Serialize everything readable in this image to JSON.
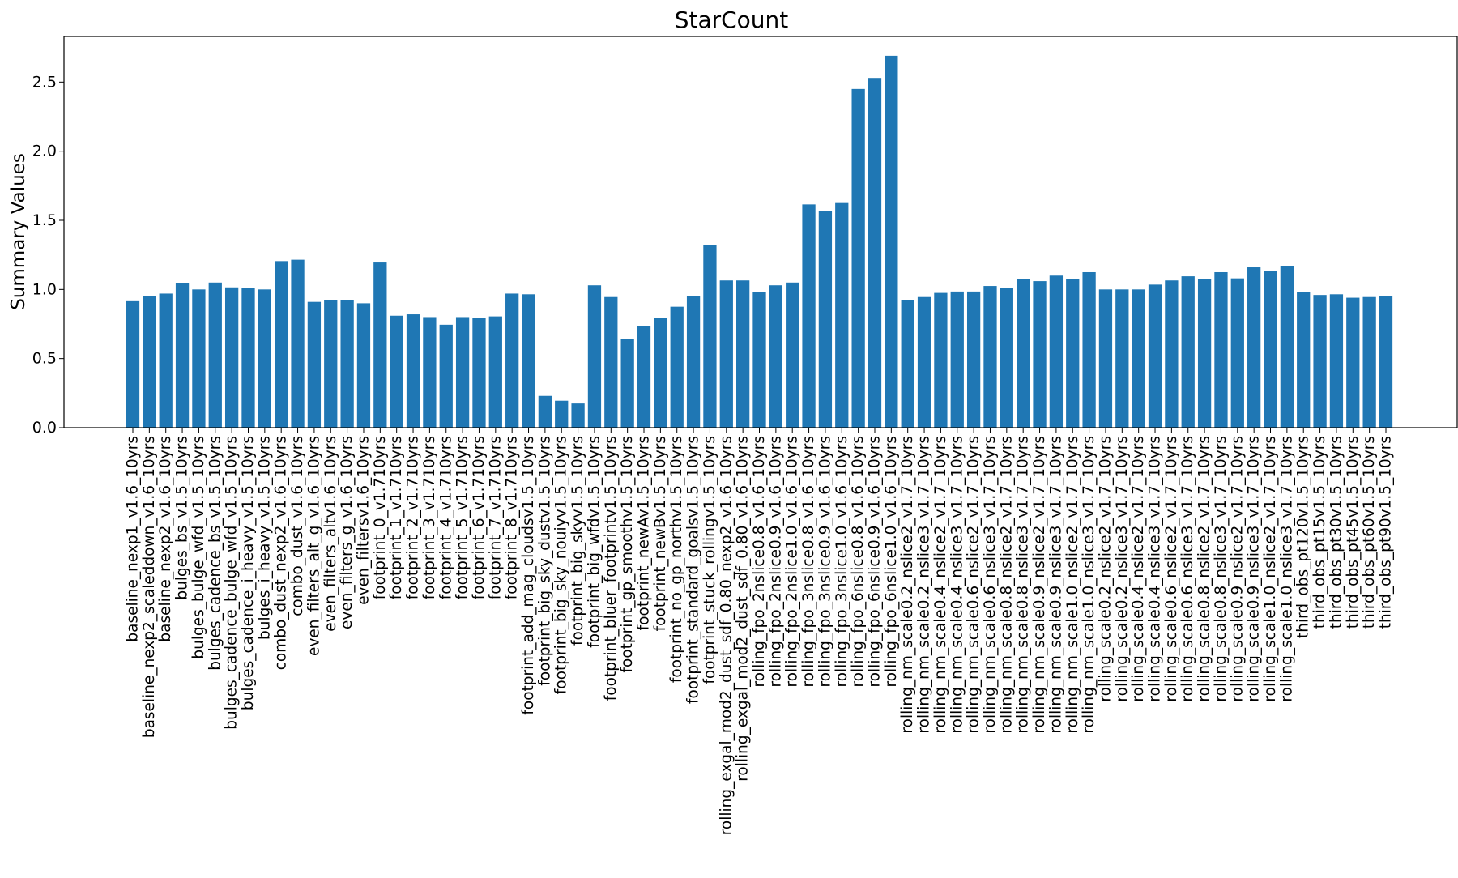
{
  "chart_data": {
    "type": "bar",
    "title": "StarCount",
    "xlabel": "",
    "ylabel": "Summary Values",
    "ylim": [
      0,
      2.83
    ],
    "yticks": [
      0.0,
      0.5,
      1.0,
      1.5,
      2.0,
      2.5
    ],
    "ytick_labels": [
      "0.0",
      "0.5",
      "1.0",
      "1.5",
      "2.0",
      "2.5"
    ],
    "grid": false,
    "bar_color": "#1f77b4",
    "categories": [
      "baseline_nexp1_v1.6_10yrs",
      "baseline_nexp2_scaleddown_v1.6_10yrs",
      "baseline_nexp2_v1.6_10yrs",
      "bulges_bs_v1.5_10yrs",
      "bulges_bulge_wfd_v1.5_10yrs",
      "bulges_cadence_bs_v1.5_10yrs",
      "bulges_cadence_bulge_wfd_v1.5_10yrs",
      "bulges_cadence_i_heavy_v1.5_10yrs",
      "bulges_i_heavy_v1.5_10yrs",
      "combo_dust_nexp2_v1.6_10yrs",
      "combo_dust_v1.6_10yrs",
      "even_filters_alt_g_v1.6_10yrs",
      "even_filters_altv1.6_10yrs",
      "even_filters_g_v1.6_10yrs",
      "even_filtersv1.6_10yrs",
      "footprint_0_v1.710yrs",
      "footprint_1_v1.710yrs",
      "footprint_2_v1.710yrs",
      "footprint_3_v1.710yrs",
      "footprint_4_v1.710yrs",
      "footprint_5_v1.710yrs",
      "footprint_6_v1.710yrs",
      "footprint_7_v1.710yrs",
      "footprint_8_v1.710yrs",
      "footprint_add_mag_cloudsv1.5_10yrs",
      "footprint_big_sky_dustv1.5_10yrs",
      "footprint_big_sky_nouiyv1.5_10yrs",
      "footprint_big_skyv1.5_10yrs",
      "footprint_big_wfdv1.5_10yrs",
      "footprint_bluer_footprintv1.5_10yrs",
      "footprint_gp_smoothv1.5_10yrs",
      "footprint_newAv1.5_10yrs",
      "footprint_newBv1.5_10yrs",
      "footprint_no_gp_northv1.5_10yrs",
      "footprint_standard_goalsv1.5_10yrs",
      "footprint_stuck_rollingv1.5_10yrs",
      "rolling_exgal_mod2_dust_sdf_0.80_nexp2_v1.6_10yrs",
      "rolling_exgal_mod2_dust_sdf_0.80_v1.6_10yrs",
      "rolling_fpo_2nslice0.8_v1.6_10yrs",
      "rolling_fpo_2nslice0.9_v1.6_10yrs",
      "rolling_fpo_2nslice1.0_v1.6_10yrs",
      "rolling_fpo_3nslice0.8_v1.6_10yrs",
      "rolling_fpo_3nslice0.9_v1.6_10yrs",
      "rolling_fpo_3nslice1.0_v1.6_10yrs",
      "rolling_fpo_6nslice0.8_v1.6_10yrs",
      "rolling_fpo_6nslice0.9_v1.6_10yrs",
      "rolling_fpo_6nslice1.0_v1.6_10yrs",
      "rolling_nm_scale0.2_nslice2_v1.7_10yrs",
      "rolling_nm_scale0.2_nslice3_v1.7_10yrs",
      "rolling_nm_scale0.4_nslice2_v1.7_10yrs",
      "rolling_nm_scale0.4_nslice3_v1.7_10yrs",
      "rolling_nm_scale0.6_nslice2_v1.7_10yrs",
      "rolling_nm_scale0.6_nslice3_v1.7_10yrs",
      "rolling_nm_scale0.8_nslice2_v1.7_10yrs",
      "rolling_nm_scale0.8_nslice3_v1.7_10yrs",
      "rolling_nm_scale0.9_nslice2_v1.7_10yrs",
      "rolling_nm_scale0.9_nslice3_v1.7_10yrs",
      "rolling_nm_scale1.0_nslice2_v1.7_10yrs",
      "rolling_nm_scale1.0_nslice3_v1.7_10yrs",
      "rolling_scale0.2_nslice2_v1.7_10yrs",
      "rolling_scale0.2_nslice3_v1.7_10yrs",
      "rolling_scale0.4_nslice2_v1.7_10yrs",
      "rolling_scale0.4_nslice3_v1.7_10yrs",
      "rolling_scale0.6_nslice2_v1.7_10yrs",
      "rolling_scale0.6_nslice3_v1.7_10yrs",
      "rolling_scale0.8_nslice2_v1.7_10yrs",
      "rolling_scale0.8_nslice3_v1.7_10yrs",
      "rolling_scale0.9_nslice2_v1.7_10yrs",
      "rolling_scale0.9_nslice3_v1.7_10yrs",
      "rolling_scale1.0_nslice2_v1.7_10yrs",
      "rolling_scale1.0_nslice3_v1.7_10yrs",
      "third_obs_pt120v1.5_10yrs",
      "third_obs_pt15v1.5_10yrs",
      "third_obs_pt30v1.5_10yrs",
      "third_obs_pt45v1.5_10yrs",
      "third_obs_pt60v1.5_10yrs",
      "third_obs_pt90v1.5_10yrs"
    ],
    "values": [
      0.915,
      0.95,
      0.97,
      1.045,
      1.0,
      1.05,
      1.015,
      1.01,
      1.0,
      1.205,
      1.215,
      0.91,
      0.925,
      0.92,
      0.9,
      1.195,
      0.81,
      0.82,
      0.8,
      0.745,
      0.8,
      0.795,
      0.805,
      0.97,
      0.965,
      0.23,
      0.195,
      0.175,
      1.03,
      0.945,
      0.64,
      0.735,
      0.795,
      0.875,
      0.95,
      1.32,
      1.065,
      1.065,
      0.98,
      1.03,
      1.05,
      1.615,
      1.57,
      1.625,
      2.45,
      2.53,
      2.69,
      0.925,
      0.945,
      0.975,
      0.985,
      0.985,
      1.025,
      1.01,
      1.075,
      1.06,
      1.1,
      1.075,
      1.125,
      1.0,
      1.0,
      1.0,
      1.035,
      1.065,
      1.095,
      1.075,
      1.125,
      1.08,
      1.16,
      1.135,
      1.17,
      0.98,
      0.96,
      0.965,
      0.94,
      0.945,
      0.95
    ]
  }
}
